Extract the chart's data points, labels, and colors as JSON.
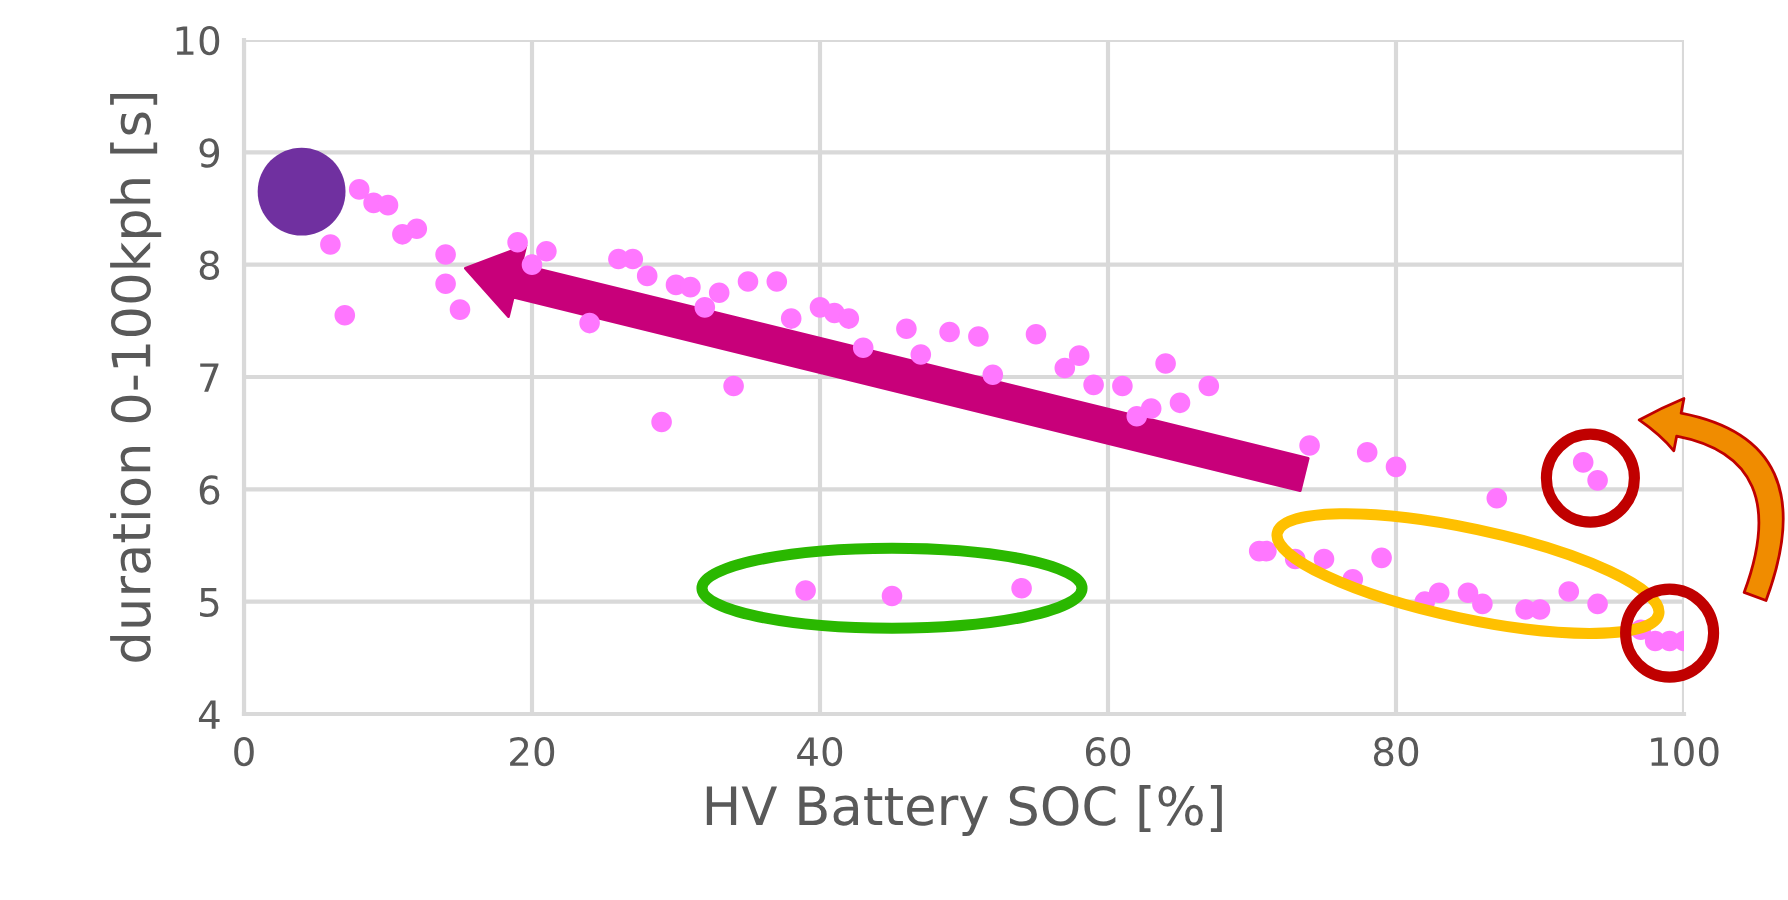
{
  "chart_data": {
    "type": "scatter",
    "xlabel": "HV Battery SOC [%]",
    "ylabel": "duration 0-100kph [s]",
    "xlim": [
      0,
      100
    ],
    "xticks": [
      0,
      20,
      40,
      60,
      80,
      100
    ],
    "ylim": [
      4,
      10
    ],
    "yticks": [
      4,
      5,
      6,
      7,
      8,
      9,
      10
    ],
    "grid": true,
    "marker": "circle",
    "series": [
      {
        "color": "#ff77ff",
        "x": [
          6,
          7,
          8,
          9,
          10,
          11,
          12,
          14,
          14,
          15,
          19,
          20,
          21,
          24,
          26,
          27,
          28,
          29,
          30,
          31,
          32,
          33,
          34,
          35,
          37,
          38,
          39,
          40,
          41,
          42,
          43,
          45,
          46,
          47,
          49,
          51,
          52,
          54,
          55,
          57,
          58,
          59,
          61,
          62,
          63,
          64,
          65,
          67,
          70.5,
          71,
          73,
          74,
          75,
          77,
          78,
          79,
          80,
          82,
          83,
          85,
          86,
          87,
          89,
          90,
          92,
          93,
          94,
          94,
          97,
          98,
          99,
          100
        ],
        "values": [
          8.18,
          7.55,
          8.67,
          8.55,
          8.53,
          8.27,
          8.32,
          8.09,
          7.83,
          7.6,
          8.2,
          8.0,
          8.12,
          7.48,
          8.05,
          8.05,
          7.9,
          6.6,
          7.82,
          7.8,
          7.62,
          7.75,
          6.92,
          7.85,
          7.85,
          7.52,
          5.1,
          7.62,
          7.57,
          7.52,
          7.26,
          5.05,
          7.43,
          7.2,
          7.4,
          7.36,
          7.02,
          5.12,
          7.38,
          7.08,
          7.19,
          6.93,
          6.92,
          6.65,
          6.72,
          7.12,
          6.77,
          6.92,
          5.45,
          5.45,
          5.38,
          6.39,
          5.38,
          5.2,
          6.33,
          5.39,
          6.2,
          5.0,
          5.08,
          5.08,
          4.98,
          5.92,
          4.93,
          4.93,
          5.09,
          6.24,
          6.08,
          4.98,
          4.75,
          4.65,
          4.65,
          4.65
        ]
      },
      {
        "type": "bubble",
        "color": "#7030a0",
        "x": [
          4
        ],
        "values": [
          8.65
        ],
        "sizes": [
          1
        ]
      }
    ]
  }
}
